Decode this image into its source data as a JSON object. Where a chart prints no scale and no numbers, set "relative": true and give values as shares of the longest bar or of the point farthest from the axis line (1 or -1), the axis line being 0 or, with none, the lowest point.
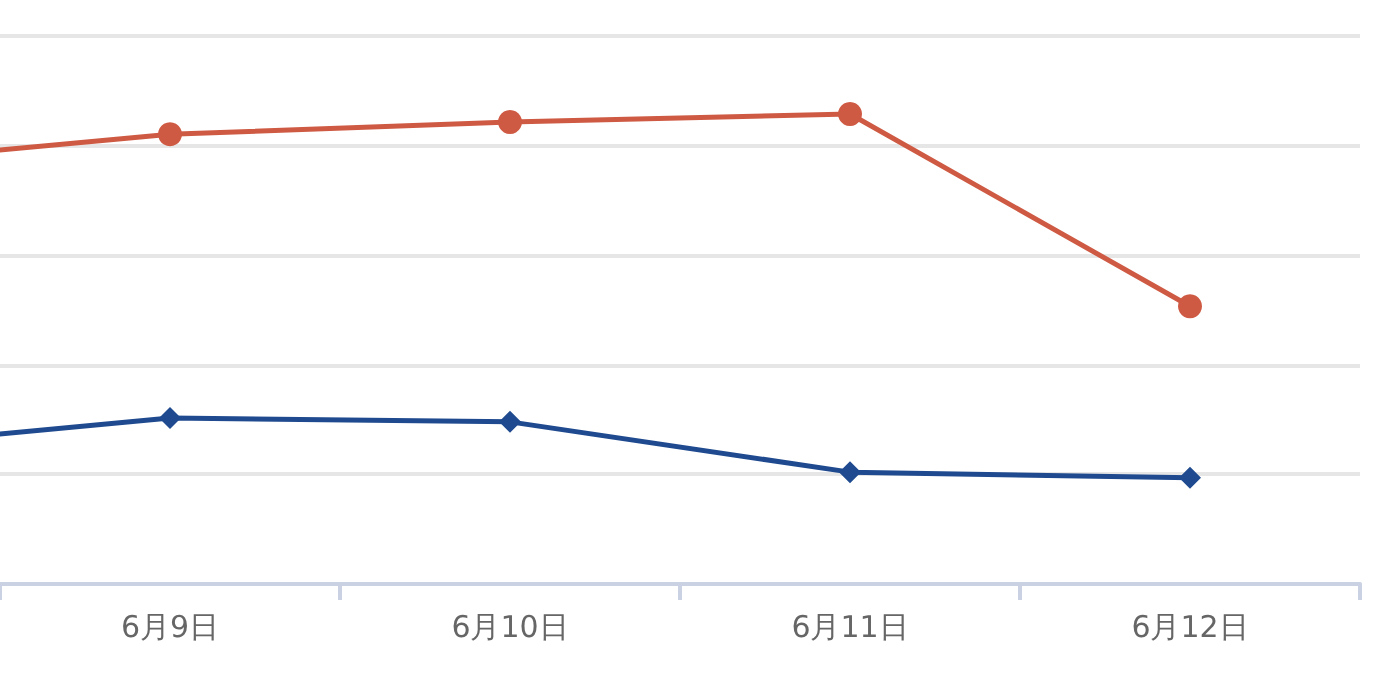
{
  "chart_data": {
    "type": "line",
    "relative": true,
    "grid": "y",
    "categories": [
      null,
      "6月9日",
      "6月10日",
      "6月11日",
      "6月12日"
    ],
    "series": [
      {
        "color": "#cf5a43",
        "marker": "circle",
        "values": [
          0.89,
          0.957,
          0.983,
          1,
          0.591
        ]
      },
      {
        "color": "#1f4a8f",
        "marker": "diamond",
        "values": [
          0.285,
          0.353,
          0.345,
          0.238,
          0.226
        ]
      }
    ]
  }
}
